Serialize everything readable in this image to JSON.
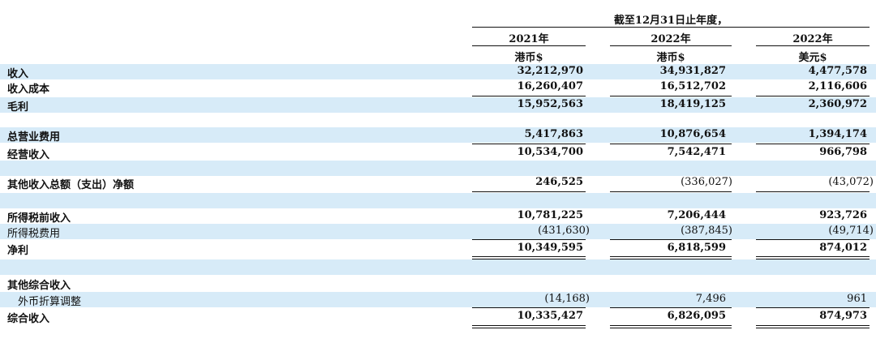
{
  "header": {
    "period": "截至12月31日止年度，",
    "columns": [
      {
        "year": "2021年",
        "currency": "港币$"
      },
      {
        "year": "2022年",
        "currency": "港币$"
      },
      {
        "year": "2022年",
        "currency": "美元$"
      }
    ]
  },
  "rows": [
    {
      "label": "收入",
      "values": [
        "32,212,970",
        "34,931,827",
        "4,477,578"
      ]
    },
    {
      "label": "收入成本",
      "values": [
        "16,260,407",
        "16,512,702",
        "2,116,606"
      ]
    },
    {
      "label": "毛利",
      "values": [
        "15,952,563",
        "18,419,125",
        "2,360,972"
      ]
    },
    {
      "label": "",
      "values": [
        "",
        "",
        ""
      ]
    },
    {
      "label": "总营业费用",
      "values": [
        "5,417,863",
        "10,876,654",
        "1,394,174"
      ]
    },
    {
      "label": "经营收入",
      "values": [
        "10,534,700",
        "7,542,471",
        "966,798"
      ]
    },
    {
      "label": "",
      "values": [
        "",
        "",
        ""
      ]
    },
    {
      "label": "其他收入总额（支出）净额",
      "values": [
        "246,525",
        "(336,027)",
        "(43,072)"
      ]
    },
    {
      "label": "",
      "values": [
        "",
        "",
        ""
      ]
    },
    {
      "label": "所得税前收入",
      "values": [
        "10,781,225",
        "7,206,444",
        "923,726"
      ]
    },
    {
      "label": "所得税费用",
      "values": [
        "(431,630)",
        "(387,845)",
        "(49,714)"
      ]
    },
    {
      "label": "净利",
      "values": [
        "10,349,595",
        "6,818,599",
        "874,012"
      ]
    },
    {
      "label": "",
      "values": [
        "",
        "",
        ""
      ]
    },
    {
      "label": "其他综合收入",
      "values": [
        "",
        "",
        ""
      ]
    },
    {
      "label": "外币折算调整",
      "values": [
        "(14,168)",
        "7,496",
        "961"
      ]
    },
    {
      "label": "综合收入",
      "values": [
        "10,335,427",
        "6,826,095",
        "874,973"
      ]
    }
  ]
}
